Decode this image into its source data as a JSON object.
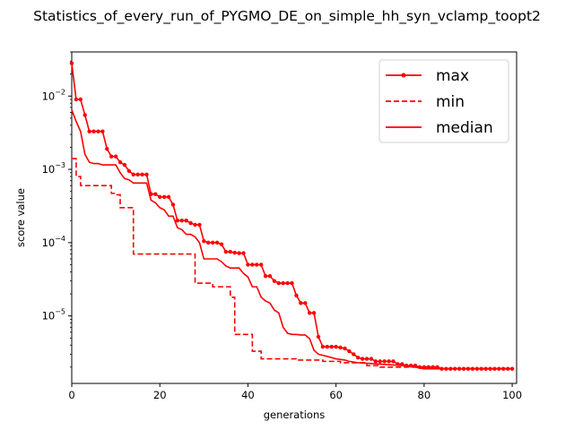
{
  "chart_data": {
    "type": "line",
    "title": "Statistics_of_every_run_of_PYGMO_DE_on_simple_hh_syn_vclamp_toopt2",
    "xlabel": "generations",
    "ylabel": "score value",
    "xlim": [
      0,
      101
    ],
    "ylim": [
      1.2e-06,
      0.04
    ],
    "yscale": "log",
    "x_ticks": [
      0,
      20,
      40,
      60,
      80,
      100
    ],
    "x_tick_labels": [
      "0",
      "20",
      "40",
      "60",
      "80",
      "100"
    ],
    "y_ticks": [
      1e-05,
      0.0001,
      0.001,
      0.01
    ],
    "y_tick_labels": [
      {
        "base": "10",
        "exp": "−5"
      },
      {
        "base": "10",
        "exp": "−4"
      },
      {
        "base": "10",
        "exp": "−3"
      },
      {
        "base": "10",
        "exp": "−2"
      }
    ],
    "legend_position": "upper-right",
    "series": [
      {
        "name": "max",
        "color": "#ff0000",
        "style": "solid-dots",
        "points": [
          [
            0,
            0.028
          ],
          [
            1,
            0.009
          ],
          [
            2,
            0.009
          ],
          [
            3,
            0.0055
          ],
          [
            4,
            0.0033
          ],
          [
            5,
            0.0033
          ],
          [
            6,
            0.0033
          ],
          [
            7,
            0.0033
          ],
          [
            8,
            0.0019
          ],
          [
            9,
            0.0015
          ],
          [
            10,
            0.0015
          ],
          [
            11,
            0.00125
          ],
          [
            12,
            0.00115
          ],
          [
            13,
            0.00095
          ],
          [
            14,
            0.00085
          ],
          [
            15,
            0.00085
          ],
          [
            16,
            0.00085
          ],
          [
            17,
            0.00085
          ],
          [
            18,
            0.00046
          ],
          [
            19,
            0.00046
          ],
          [
            20,
            0.00042
          ],
          [
            21,
            0.00042
          ],
          [
            22,
            0.00042
          ],
          [
            23,
            0.00033
          ],
          [
            24,
            0.0002
          ],
          [
            25,
            0.0002
          ],
          [
            26,
            0.0002
          ],
          [
            27,
            0.000185
          ],
          [
            28,
            0.000175
          ],
          [
            29,
            0.000175
          ],
          [
            30,
            0.000105
          ],
          [
            31,
            0.0001
          ],
          [
            32,
            0.0001
          ],
          [
            33,
            0.0001
          ],
          [
            34,
            9.5e-05
          ],
          [
            35,
            7.5e-05
          ],
          [
            36,
            7.5e-05
          ],
          [
            37,
            7.3e-05
          ],
          [
            38,
            7.2e-05
          ],
          [
            39,
            7.2e-05
          ],
          [
            40,
            5e-05
          ],
          [
            41,
            5e-05
          ],
          [
            42,
            5e-05
          ],
          [
            43,
            5e-05
          ],
          [
            44,
            3.5e-05
          ],
          [
            45,
            3.5e-05
          ],
          [
            46,
            3e-05
          ],
          [
            47,
            2.8e-05
          ],
          [
            48,
            2.8e-05
          ],
          [
            49,
            2.8e-05
          ],
          [
            50,
            2.8e-05
          ],
          [
            51,
            1.9e-05
          ],
          [
            52,
            1.5e-05
          ],
          [
            53,
            1.5e-05
          ],
          [
            54,
            1.1e-05
          ],
          [
            55,
            1.1e-05
          ],
          [
            56,
            5.2e-06
          ],
          [
            57,
            3.8e-06
          ],
          [
            58,
            3.8e-06
          ],
          [
            59,
            3.8e-06
          ],
          [
            60,
            3.8e-06
          ],
          [
            61,
            3.7e-06
          ],
          [
            62,
            3.6e-06
          ],
          [
            63,
            3.3e-06
          ],
          [
            64,
            3e-06
          ],
          [
            65,
            2.7e-06
          ],
          [
            66,
            2.6e-06
          ],
          [
            67,
            2.6e-06
          ],
          [
            68,
            2.6e-06
          ],
          [
            69,
            2.4e-06
          ],
          [
            70,
            2.4e-06
          ],
          [
            71,
            2.4e-06
          ],
          [
            72,
            2.4e-06
          ],
          [
            73,
            2.4e-06
          ],
          [
            74,
            2.2e-06
          ],
          [
            75,
            2.2e-06
          ],
          [
            76,
            2.1e-06
          ],
          [
            77,
            2.1e-06
          ],
          [
            78,
            2.1e-06
          ],
          [
            79,
            2e-06
          ],
          [
            80,
            2e-06
          ],
          [
            81,
            2e-06
          ],
          [
            82,
            2e-06
          ],
          [
            83,
            2e-06
          ],
          [
            84,
            1.9e-06
          ],
          [
            85,
            1.9e-06
          ],
          [
            86,
            1.9e-06
          ],
          [
            87,
            1.9e-06
          ],
          [
            88,
            1.9e-06
          ],
          [
            89,
            1.9e-06
          ],
          [
            90,
            1.9e-06
          ],
          [
            91,
            1.9e-06
          ],
          [
            92,
            1.9e-06
          ],
          [
            93,
            1.9e-06
          ],
          [
            94,
            1.9e-06
          ],
          [
            95,
            1.9e-06
          ],
          [
            96,
            1.9e-06
          ],
          [
            97,
            1.9e-06
          ],
          [
            98,
            1.9e-06
          ],
          [
            99,
            1.9e-06
          ],
          [
            100,
            1.9e-06
          ]
        ]
      },
      {
        "name": "min",
        "color": "#ff0000",
        "style": "dashed",
        "points": [
          [
            0,
            0.0014
          ],
          [
            1,
            0.0008
          ],
          [
            2,
            0.0006
          ],
          [
            3,
            0.0006
          ],
          [
            7,
            0.0006
          ],
          [
            8,
            0.0006
          ],
          [
            9,
            0.00047
          ],
          [
            10,
            0.00045
          ],
          [
            11,
            0.0003
          ],
          [
            12,
            0.0003
          ],
          [
            13,
            0.0003
          ],
          [
            14,
            7e-05
          ],
          [
            15,
            7e-05
          ],
          [
            27,
            7e-05
          ],
          [
            28,
            2.8e-05
          ],
          [
            29,
            2.8e-05
          ],
          [
            31,
            2.8e-05
          ],
          [
            32,
            2.5e-05
          ],
          [
            35,
            2.5e-05
          ],
          [
            36,
            1.8e-05
          ],
          [
            37,
            5.6e-06
          ],
          [
            40,
            5.6e-06
          ],
          [
            41,
            3.3e-06
          ],
          [
            42,
            3.3e-06
          ],
          [
            43,
            2.6e-06
          ],
          [
            50,
            2.6e-06
          ],
          [
            51,
            2.5e-06
          ],
          [
            52,
            2.5e-06
          ],
          [
            56,
            2.5e-06
          ],
          [
            57,
            2.4e-06
          ],
          [
            60,
            2.4e-06
          ],
          [
            61,
            2.3e-06
          ],
          [
            65,
            2.3e-06
          ],
          [
            67,
            2.1e-06
          ],
          [
            70,
            2e-06
          ],
          [
            75,
            2e-06
          ],
          [
            80,
            1.9e-06
          ],
          [
            100,
            1.9e-06
          ]
        ]
      },
      {
        "name": "median",
        "color": "#ff0000",
        "style": "solid",
        "points": [
          [
            0,
            0.0065
          ],
          [
            1,
            0.0045
          ],
          [
            2,
            0.0033
          ],
          [
            3,
            0.0016
          ],
          [
            4,
            0.00125
          ],
          [
            5,
            0.0012
          ],
          [
            6,
            0.0012
          ],
          [
            7,
            0.00115
          ],
          [
            8,
            0.00115
          ],
          [
            9,
            0.00115
          ],
          [
            10,
            0.00115
          ],
          [
            11,
            0.0009
          ],
          [
            12,
            0.00075
          ],
          [
            13,
            0.00072
          ],
          [
            14,
            0.00065
          ],
          [
            15,
            0.00065
          ],
          [
            16,
            0.00065
          ],
          [
            17,
            0.00065
          ],
          [
            18,
            0.00038
          ],
          [
            19,
            0.00035
          ],
          [
            20,
            0.0003
          ],
          [
            21,
            0.00028
          ],
          [
            22,
            0.00023
          ],
          [
            23,
            0.00023
          ],
          [
            24,
            0.00016
          ],
          [
            25,
            0.00015
          ],
          [
            26,
            0.00013
          ],
          [
            27,
            0.00013
          ],
          [
            28,
            0.00012
          ],
          [
            29,
            0.0001
          ],
          [
            30,
            6e-05
          ],
          [
            31,
            6e-05
          ],
          [
            32,
            6e-05
          ],
          [
            33,
            6e-05
          ],
          [
            34,
            5.5e-05
          ],
          [
            35,
            4.8e-05
          ],
          [
            36,
            4.5e-05
          ],
          [
            37,
            4.5e-05
          ],
          [
            38,
            4.5e-05
          ],
          [
            39,
            3.8e-05
          ],
          [
            40,
            3.4e-05
          ],
          [
            41,
            2.5e-05
          ],
          [
            42,
            2.5e-05
          ],
          [
            43,
            1.8e-05
          ],
          [
            44,
            1.6e-05
          ],
          [
            45,
            1.5e-05
          ],
          [
            46,
            1.2e-05
          ],
          [
            47,
            1.1e-05
          ],
          [
            48,
            7e-06
          ],
          [
            49,
            5.8e-06
          ],
          [
            50,
            5.6e-06
          ],
          [
            51,
            5.6e-06
          ],
          [
            52,
            5.5e-06
          ],
          [
            53,
            5.5e-06
          ],
          [
            54,
            4.9e-06
          ],
          [
            55,
            3.4e-06
          ],
          [
            56,
            3e-06
          ],
          [
            57,
            2.9e-06
          ],
          [
            58,
            2.8e-06
          ],
          [
            59,
            2.7e-06
          ],
          [
            60,
            2.6e-06
          ],
          [
            62,
            2.5e-06
          ],
          [
            63,
            2.4e-06
          ],
          [
            65,
            2.3e-06
          ],
          [
            70,
            2.2e-06
          ],
          [
            75,
            2.1e-06
          ],
          [
            78,
            2e-06
          ],
          [
            80,
            1.9e-06
          ],
          [
            100,
            1.9e-06
          ]
        ]
      }
    ]
  }
}
